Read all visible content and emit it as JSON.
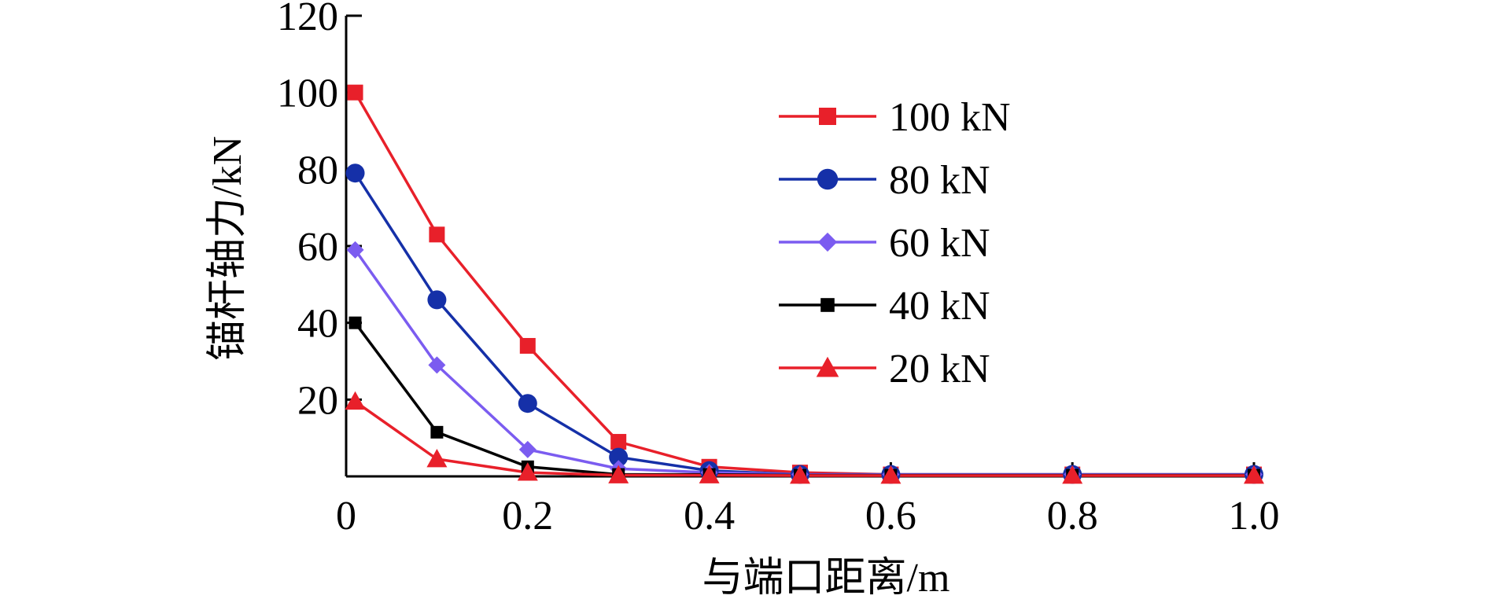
{
  "chart_data": {
    "type": "line",
    "xlabel": "与端口距离/m",
    "ylabel": "锚杆轴力/kN",
    "xlim": [
      0,
      1.0
    ],
    "ylim": [
      0,
      120
    ],
    "x_ticks": [
      "0",
      "0.2",
      "0.4",
      "0.6",
      "0.8",
      "1.0"
    ],
    "y_ticks": [
      "20",
      "40",
      "60",
      "80",
      "100",
      "120"
    ],
    "legend_position": "top-right",
    "series": [
      {
        "name": "100 kN",
        "color": "#e8202a",
        "marker": "square",
        "x": [
          0.01,
          0.1,
          0.2,
          0.3,
          0.4,
          0.5,
          0.6,
          0.8,
          1.0
        ],
        "y": [
          100,
          63,
          34,
          9,
          2.5,
          1,
          0.5,
          0.5,
          0.5
        ]
      },
      {
        "name": "80 kN",
        "color": "#1530a8",
        "marker": "circle",
        "x": [
          0.01,
          0.1,
          0.2,
          0.3,
          0.4,
          0.5,
          0.6,
          0.8,
          1.0
        ],
        "y": [
          79,
          46,
          19,
          5,
          1.5,
          0.5,
          0.5,
          0.5,
          0.5
        ]
      },
      {
        "name": "60 kN",
        "color": "#7b5cf0",
        "marker": "diamond",
        "x": [
          0.01,
          0.1,
          0.2,
          0.3,
          0.4,
          0.5,
          0.6,
          0.8,
          1.0
        ],
        "y": [
          59,
          29,
          7,
          2,
          1,
          0.5,
          0.5,
          0.5,
          0.5
        ]
      },
      {
        "name": "40 kN",
        "color": "#000000",
        "marker": "square-small",
        "x": [
          0.01,
          0.1,
          0.2,
          0.3,
          0.4,
          0.5,
          0.6,
          0.8,
          1.0
        ],
        "y": [
          40,
          11.5,
          2.5,
          0.5,
          0.5,
          0.3,
          0.3,
          0.3,
          0.3
        ]
      },
      {
        "name": "20 kN",
        "color": "#e8202a",
        "marker": "triangle",
        "x": [
          0.01,
          0.1,
          0.2,
          0.3,
          0.4,
          0.5,
          0.6,
          0.8,
          1.0
        ],
        "y": [
          19.5,
          4.5,
          1,
          0.3,
          0.3,
          0.2,
          0.2,
          0.2,
          0.2
        ]
      }
    ]
  }
}
